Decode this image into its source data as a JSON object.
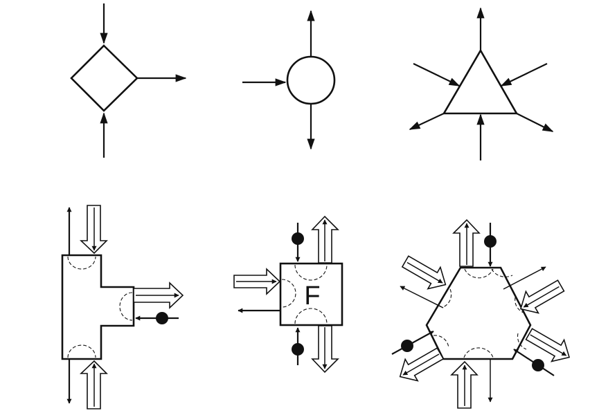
{
  "diagram": {
    "nodes": [
      {
        "id": "diamond-junction",
        "shape": "diamond",
        "label": ""
      },
      {
        "id": "circle-junction",
        "shape": "circle",
        "label": ""
      },
      {
        "id": "triangle-junction",
        "shape": "triangle",
        "label": ""
      },
      {
        "id": "t-junction",
        "shape": "t-shape",
        "label": ""
      },
      {
        "id": "square-junction",
        "shape": "square",
        "label": "F"
      },
      {
        "id": "hexagon-junction",
        "shape": "hexagon",
        "label": ""
      }
    ],
    "colors": {
      "stroke": "#111111",
      "background": "#ffffff"
    }
  }
}
